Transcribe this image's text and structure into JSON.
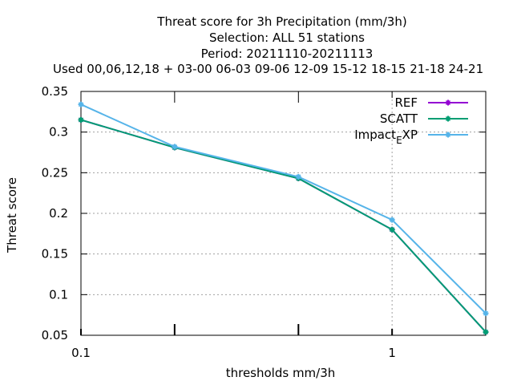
{
  "chart_data": {
    "type": "line",
    "title_lines": [
      "Threat score  for 3h Precipitation (mm/3h)",
      "Selection: ALL     51 stations",
      "Period: 20211110-20211113",
      "Used  00,06,12,18  + 03-00 06-03 09-06 12-09 15-12 18-15 21-18 24-21"
    ],
    "xlabel": "thresholds mm/3h",
    "ylabel": "Threat score",
    "x_scale": "log",
    "xlim": [
      0.1,
      2
    ],
    "ylim": [
      0.05,
      0.35
    ],
    "x_ticks": [
      {
        "value": 0.1,
        "label": "0.1"
      },
      {
        "value": 0.2,
        "label": ""
      },
      {
        "value": 0.5,
        "label": ""
      },
      {
        "value": 1,
        "label": "1"
      }
    ],
    "y_ticks": [
      {
        "value": 0.05,
        "label": "0.05"
      },
      {
        "value": 0.1,
        "label": "0.1"
      },
      {
        "value": 0.15,
        "label": "0.15"
      },
      {
        "value": 0.2,
        "label": "0.2"
      },
      {
        "value": 0.25,
        "label": "0.25"
      },
      {
        "value": 0.3,
        "label": "0.3"
      },
      {
        "value": 0.35,
        "label": "0.35"
      }
    ],
    "grid": true,
    "legend_position": "top-right",
    "series": [
      {
        "name": "REF",
        "color": "#9400d3",
        "x": [
          0.1,
          0.2,
          0.5,
          1,
          2
        ],
        "y": [
          0.315,
          0.281,
          0.243,
          0.18,
          0.054
        ]
      },
      {
        "name": "SCATT",
        "color": "#009e73",
        "x": [
          0.1,
          0.2,
          0.5,
          1,
          2
        ],
        "y": [
          0.315,
          0.281,
          0.243,
          0.18,
          0.054
        ]
      },
      {
        "name": "Impact",
        "name_sub": "E",
        "name_suffix": "XP",
        "color": "#56b4e9",
        "x": [
          0.1,
          0.2,
          0.5,
          1,
          2
        ],
        "y": [
          0.334,
          0.282,
          0.245,
          0.192,
          0.077
        ]
      }
    ]
  }
}
